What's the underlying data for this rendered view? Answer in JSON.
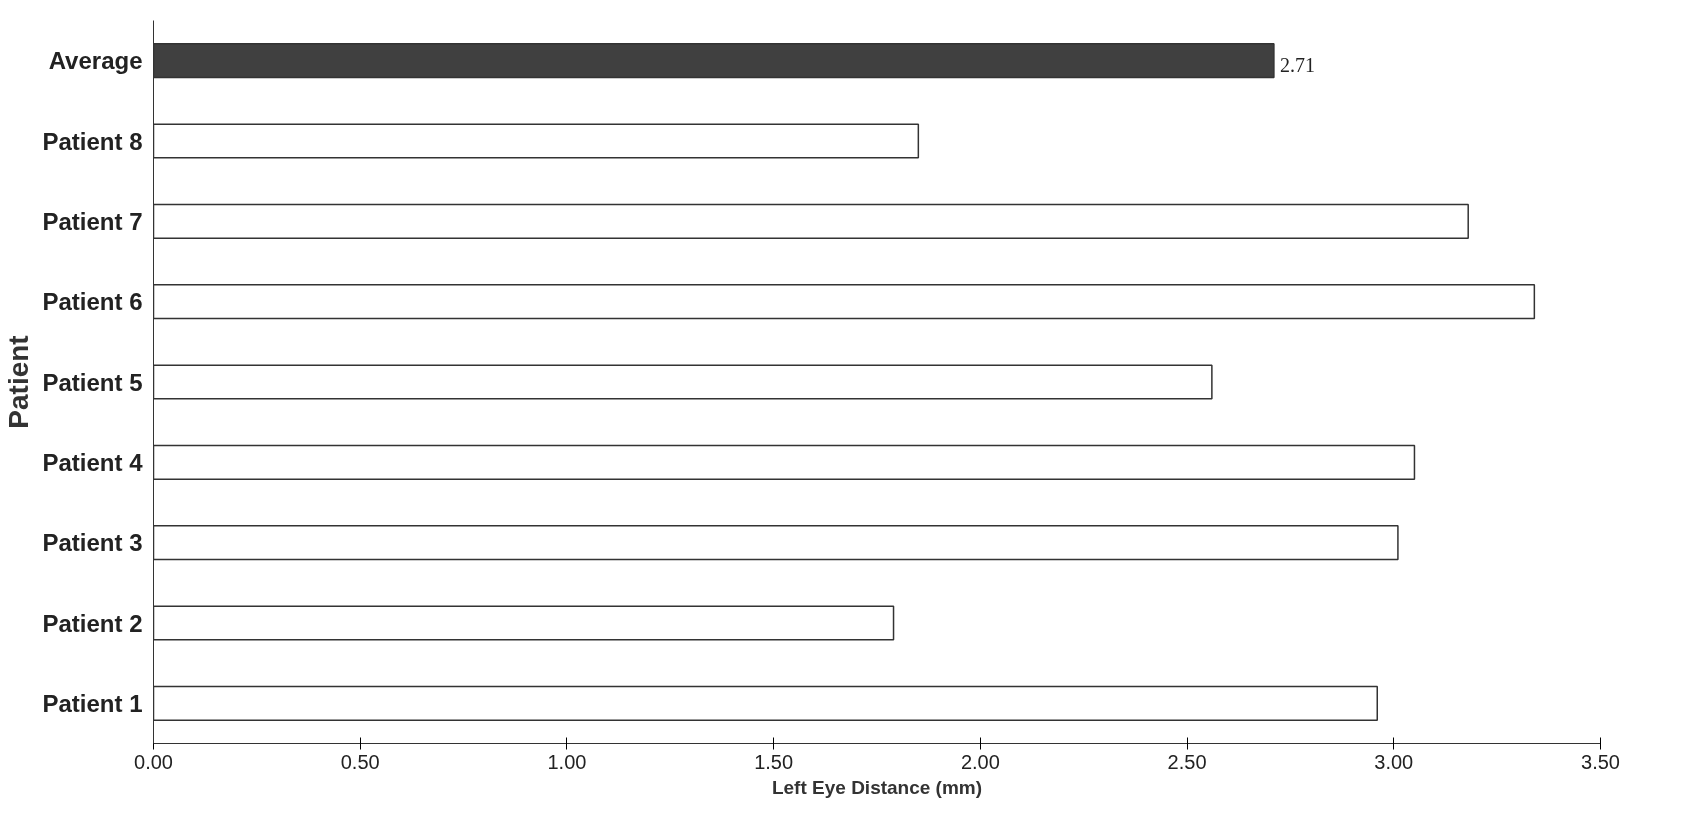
{
  "chart_data": {
    "type": "bar",
    "orientation": "horizontal",
    "xlabel": "Left Eye Distance (mm)",
    "ylabel": "Patient",
    "categories": [
      "Average",
      "Patient 8",
      "Patient 7",
      "Patient 6",
      "Patient 5",
      "Patient 4",
      "Patient 3",
      "Patient 2",
      "Patient 1"
    ],
    "values": [
      2.71,
      1.85,
      3.18,
      3.34,
      2.56,
      3.05,
      3.01,
      1.79,
      2.96
    ],
    "colors": [
      "#404040",
      "#ffffff",
      "#ffffff",
      "#ffffff",
      "#ffffff",
      "#ffffff",
      "#ffffff",
      "#ffffff",
      "#ffffff"
    ],
    "value_labels": [
      "2.71",
      null,
      null,
      null,
      null,
      null,
      null,
      null,
      null
    ],
    "xlim": [
      0,
      3.5
    ],
    "xticks": [
      {
        "value": 0,
        "label": "0.00"
      },
      {
        "value": 0.5,
        "label": "0.50"
      },
      {
        "value": 1,
        "label": "1.00"
      },
      {
        "value": 1.5,
        "label": "1.50"
      },
      {
        "value": 2,
        "label": "2.00"
      },
      {
        "value": 2.5,
        "label": "2.50"
      },
      {
        "value": 3,
        "label": "3.00"
      },
      {
        "value": 3.5,
        "label": "3.50"
      }
    ],
    "grid": false
  }
}
